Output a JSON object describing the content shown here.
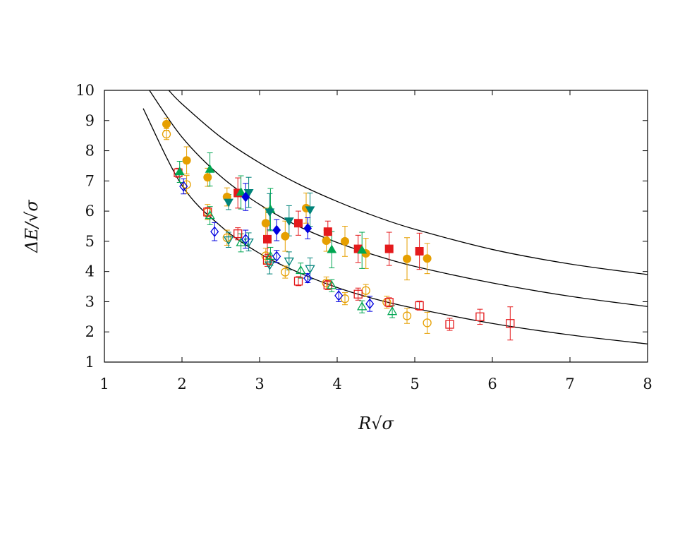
{
  "chart_data": {
    "type": "scatter",
    "title": "",
    "xlabel": "R√σ",
    "ylabel": "ΔE/√σ",
    "xlim": [
      1,
      8
    ],
    "ylim": [
      1,
      10
    ],
    "x_ticks": [
      "1",
      "2",
      "3",
      "4",
      "5",
      "6",
      "7",
      "8"
    ],
    "y_ticks": [
      "1",
      "2",
      "3",
      "4",
      "5",
      "6",
      "7",
      "8",
      "9",
      "10"
    ],
    "grid": false,
    "legend": "none",
    "curves": [
      {
        "shape": "solid black curve",
        "color": "#000000",
        "points": [
          [
            1.5,
            9.4
          ],
          [
            2.0,
            6.85
          ],
          [
            2.5,
            5.5
          ],
          [
            3.0,
            4.6
          ],
          [
            3.5,
            3.97
          ],
          [
            4.0,
            3.47
          ],
          [
            4.5,
            3.08
          ],
          [
            5.0,
            2.78
          ],
          [
            6.0,
            2.28
          ],
          [
            7.0,
            1.9
          ],
          [
            8.0,
            1.6
          ]
        ]
      },
      {
        "shape": "solid black curve",
        "color": "#000000",
        "points": [
          [
            1.58,
            10.0
          ],
          [
            2.0,
            8.45
          ],
          [
            2.5,
            7.15
          ],
          [
            3.0,
            6.22
          ],
          [
            3.5,
            5.5
          ],
          [
            4.0,
            4.96
          ],
          [
            4.5,
            4.53
          ],
          [
            5.0,
            4.17
          ],
          [
            6.0,
            3.62
          ],
          [
            7.0,
            3.18
          ],
          [
            8.0,
            2.84
          ]
        ]
      },
      {
        "shape": "solid black curve",
        "color": "#000000",
        "points": [
          [
            1.83,
            10.0
          ],
          [
            2.0,
            9.55
          ],
          [
            2.5,
            8.45
          ],
          [
            3.0,
            7.6
          ],
          [
            3.5,
            6.9
          ],
          [
            4.0,
            6.32
          ],
          [
            4.5,
            5.82
          ],
          [
            5.0,
            5.4
          ],
          [
            6.0,
            4.73
          ],
          [
            7.0,
            4.25
          ],
          [
            8.0,
            3.9
          ]
        ]
      }
    ],
    "series": [
      {
        "marker": "circle-filled",
        "color": "#E69F00",
        "points": [
          {
            "x": 1.8,
            "y": 8.88,
            "err": 0.2
          },
          {
            "x": 2.06,
            "y": 7.68,
            "err": 0.45
          },
          {
            "x": 2.33,
            "y": 7.12,
            "err": 0.3
          },
          {
            "x": 2.58,
            "y": 6.47,
            "err": 0.3
          },
          {
            "x": 3.08,
            "y": 5.6,
            "err": 0.5
          },
          {
            "x": 3.33,
            "y": 5.17,
            "err": 0.5
          },
          {
            "x": 3.6,
            "y": 6.1,
            "err": 0.5
          },
          {
            "x": 3.86,
            "y": 5.02,
            "err": 0.35
          },
          {
            "x": 4.1,
            "y": 5.0,
            "err": 0.5
          },
          {
            "x": 4.37,
            "y": 4.6,
            "err": 0.5
          },
          {
            "x": 4.9,
            "y": 4.42,
            "err": 0.7
          },
          {
            "x": 5.16,
            "y": 4.43,
            "err": 0.5
          }
        ]
      },
      {
        "marker": "circle-open",
        "color": "#E69F00",
        "points": [
          {
            "x": 1.8,
            "y": 8.55,
            "err": 0.18
          },
          {
            "x": 2.06,
            "y": 6.88,
            "err": 0.3
          },
          {
            "x": 2.33,
            "y": 5.97,
            "err": 0.25
          },
          {
            "x": 2.58,
            "y": 5.12,
            "err": 0.25
          },
          {
            "x": 3.08,
            "y": 4.52,
            "err": 0.25
          },
          {
            "x": 3.33,
            "y": 3.98,
            "err": 0.2
          },
          {
            "x": 3.86,
            "y": 3.62,
            "err": 0.2
          },
          {
            "x": 4.1,
            "y": 3.1,
            "err": 0.2
          },
          {
            "x": 4.37,
            "y": 3.37,
            "err": 0.2
          },
          {
            "x": 4.64,
            "y": 2.98,
            "err": 0.2
          },
          {
            "x": 4.9,
            "y": 2.53,
            "err": 0.25
          },
          {
            "x": 5.16,
            "y": 2.3,
            "err": 0.35
          }
        ]
      },
      {
        "marker": "square-filled",
        "color": "#E41A1C",
        "points": [
          {
            "x": 2.72,
            "y": 6.6,
            "err": 0.5
          },
          {
            "x": 3.1,
            "y": 5.07,
            "err": 0.5
          },
          {
            "x": 3.5,
            "y": 5.6,
            "err": 0.4
          },
          {
            "x": 3.88,
            "y": 5.32,
            "err": 0.35
          },
          {
            "x": 4.27,
            "y": 4.75,
            "err": 0.45
          },
          {
            "x": 4.67,
            "y": 4.75,
            "err": 0.55
          },
          {
            "x": 5.06,
            "y": 4.67,
            "err": 0.6
          }
        ]
      },
      {
        "marker": "square-open",
        "color": "#E41A1C",
        "points": [
          {
            "x": 1.95,
            "y": 7.27,
            "err": 0.15
          },
          {
            "x": 2.33,
            "y": 5.97,
            "err": 0.15
          },
          {
            "x": 2.72,
            "y": 5.25,
            "err": 0.2
          },
          {
            "x": 3.1,
            "y": 4.37,
            "err": 0.2
          },
          {
            "x": 3.5,
            "y": 3.68,
            "err": 0.15
          },
          {
            "x": 3.88,
            "y": 3.55,
            "err": 0.15
          },
          {
            "x": 4.27,
            "y": 3.25,
            "err": 0.2
          },
          {
            "x": 4.67,
            "y": 2.98,
            "err": 0.15
          },
          {
            "x": 5.06,
            "y": 2.87,
            "err": 0.15
          },
          {
            "x": 5.45,
            "y": 2.25,
            "err": 0.2
          },
          {
            "x": 5.84,
            "y": 2.5,
            "err": 0.25
          },
          {
            "x": 6.23,
            "y": 2.28,
            "err": 0.55
          }
        ]
      },
      {
        "marker": "triangle-up-filled",
        "color": "#00A651",
        "points": [
          {
            "x": 1.97,
            "y": 7.3,
            "err": 0.35
          },
          {
            "x": 2.36,
            "y": 7.38,
            "err": 0.55
          },
          {
            "x": 2.76,
            "y": 6.62,
            "err": 0.55
          },
          {
            "x": 3.14,
            "y": 6.05,
            "err": 0.7
          },
          {
            "x": 3.93,
            "y": 4.72,
            "err": 0.6
          },
          {
            "x": 4.32,
            "y": 4.7,
            "err": 0.6
          }
        ]
      },
      {
        "marker": "triangle-up-open",
        "color": "#00A651",
        "points": [
          {
            "x": 2.36,
            "y": 5.85,
            "err": 0.3
          },
          {
            "x": 2.76,
            "y": 4.95,
            "err": 0.3
          },
          {
            "x": 3.14,
            "y": 4.5,
            "err": 0.3
          },
          {
            "x": 3.53,
            "y": 4.03,
            "err": 0.25
          },
          {
            "x": 3.93,
            "y": 3.53,
            "err": 0.2
          },
          {
            "x": 4.32,
            "y": 2.83,
            "err": 0.2
          },
          {
            "x": 4.71,
            "y": 2.67,
            "err": 0.2
          }
        ]
      },
      {
        "marker": "triangle-down-filled",
        "color": "#00837A",
        "points": [
          {
            "x": 2.6,
            "y": 6.3,
            "err": 0.25
          },
          {
            "x": 2.86,
            "y": 6.62,
            "err": 0.5
          },
          {
            "x": 3.13,
            "y": 5.98,
            "err": 0.6
          },
          {
            "x": 3.38,
            "y": 5.68,
            "err": 0.5
          },
          {
            "x": 3.65,
            "y": 6.05,
            "err": 0.55
          }
        ]
      },
      {
        "marker": "triangle-down-open",
        "color": "#00837A",
        "points": [
          {
            "x": 2.6,
            "y": 5.05,
            "err": 0.25
          },
          {
            "x": 2.86,
            "y": 4.98,
            "err": 0.3
          },
          {
            "x": 3.13,
            "y": 4.22,
            "err": 0.3
          },
          {
            "x": 3.38,
            "y": 4.35,
            "err": 0.3
          },
          {
            "x": 3.65,
            "y": 4.1,
            "err": 0.35
          }
        ]
      },
      {
        "marker": "diamond-filled",
        "color": "#0000E0",
        "points": [
          {
            "x": 2.82,
            "y": 6.47,
            "err": 0.45
          },
          {
            "x": 3.22,
            "y": 5.37,
            "err": 0.35
          },
          {
            "x": 3.62,
            "y": 5.43,
            "err": 0.35
          }
        ]
      },
      {
        "marker": "diamond-open",
        "color": "#0000E0",
        "points": [
          {
            "x": 2.02,
            "y": 6.82,
            "err": 0.25
          },
          {
            "x": 2.42,
            "y": 5.32,
            "err": 0.3
          },
          {
            "x": 2.82,
            "y": 5.07,
            "err": 0.3
          },
          {
            "x": 3.22,
            "y": 4.5,
            "err": 0.2
          },
          {
            "x": 3.62,
            "y": 3.78,
            "err": 0.15
          },
          {
            "x": 4.02,
            "y": 3.2,
            "err": 0.2
          },
          {
            "x": 4.42,
            "y": 2.93,
            "err": 0.25
          }
        ]
      }
    ]
  }
}
